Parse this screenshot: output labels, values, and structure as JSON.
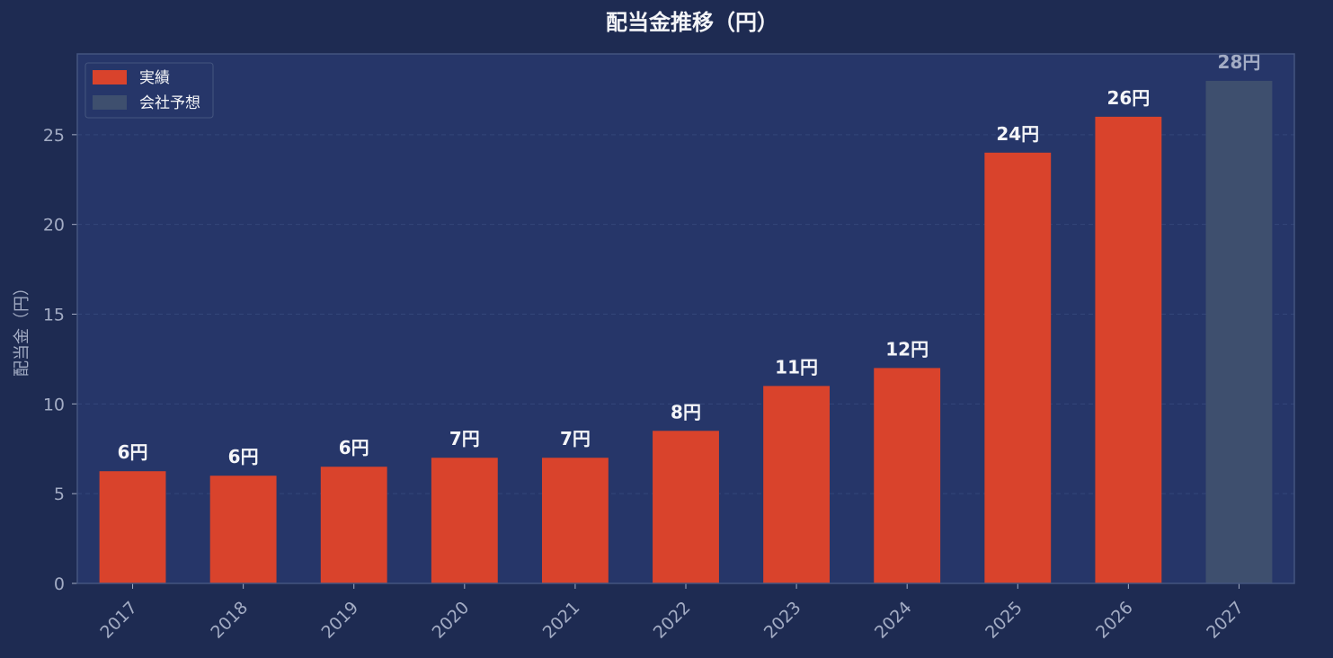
{
  "chart_data": {
    "type": "bar",
    "title": "配当金推移（円）",
    "xlabel": "",
    "ylabel": "配当金（円）",
    "ylim": [
      0,
      29.5
    ],
    "yticks": [
      0,
      5,
      10,
      15,
      20,
      25
    ],
    "grid": true,
    "legend_position": "top-left",
    "categories": [
      "2017",
      "2018",
      "2019",
      "2020",
      "2021",
      "2022",
      "2023",
      "2024",
      "2025",
      "2026",
      "2027"
    ],
    "series": [
      {
        "name": "実績",
        "color": "#d9432c",
        "values": [
          6.25,
          6.0,
          6.5,
          7.0,
          7.0,
          8.5,
          11.0,
          12.0,
          24.0,
          26.0,
          null
        ],
        "labels": [
          "6円",
          "6円",
          "6円",
          "7円",
          "7円",
          "8円",
          "11円",
          "12円",
          "24円",
          "26円",
          ""
        ]
      },
      {
        "name": "会社予想",
        "color": "#3e4f6e",
        "values": [
          null,
          null,
          null,
          null,
          null,
          null,
          null,
          null,
          null,
          null,
          28.0
        ],
        "labels": [
          "",
          "",
          "",
          "",
          "",
          "",
          "",
          "",
          "",
          "",
          "28円"
        ]
      }
    ],
    "colors": {
      "background": "#1e2b52",
      "plot_background": "#263669",
      "axis_text": "#a3acc4",
      "label_text": "#f4f5f8",
      "forecast_label_text": "#a3acc4",
      "grid": "#34467a",
      "spine": "#44557f"
    }
  }
}
